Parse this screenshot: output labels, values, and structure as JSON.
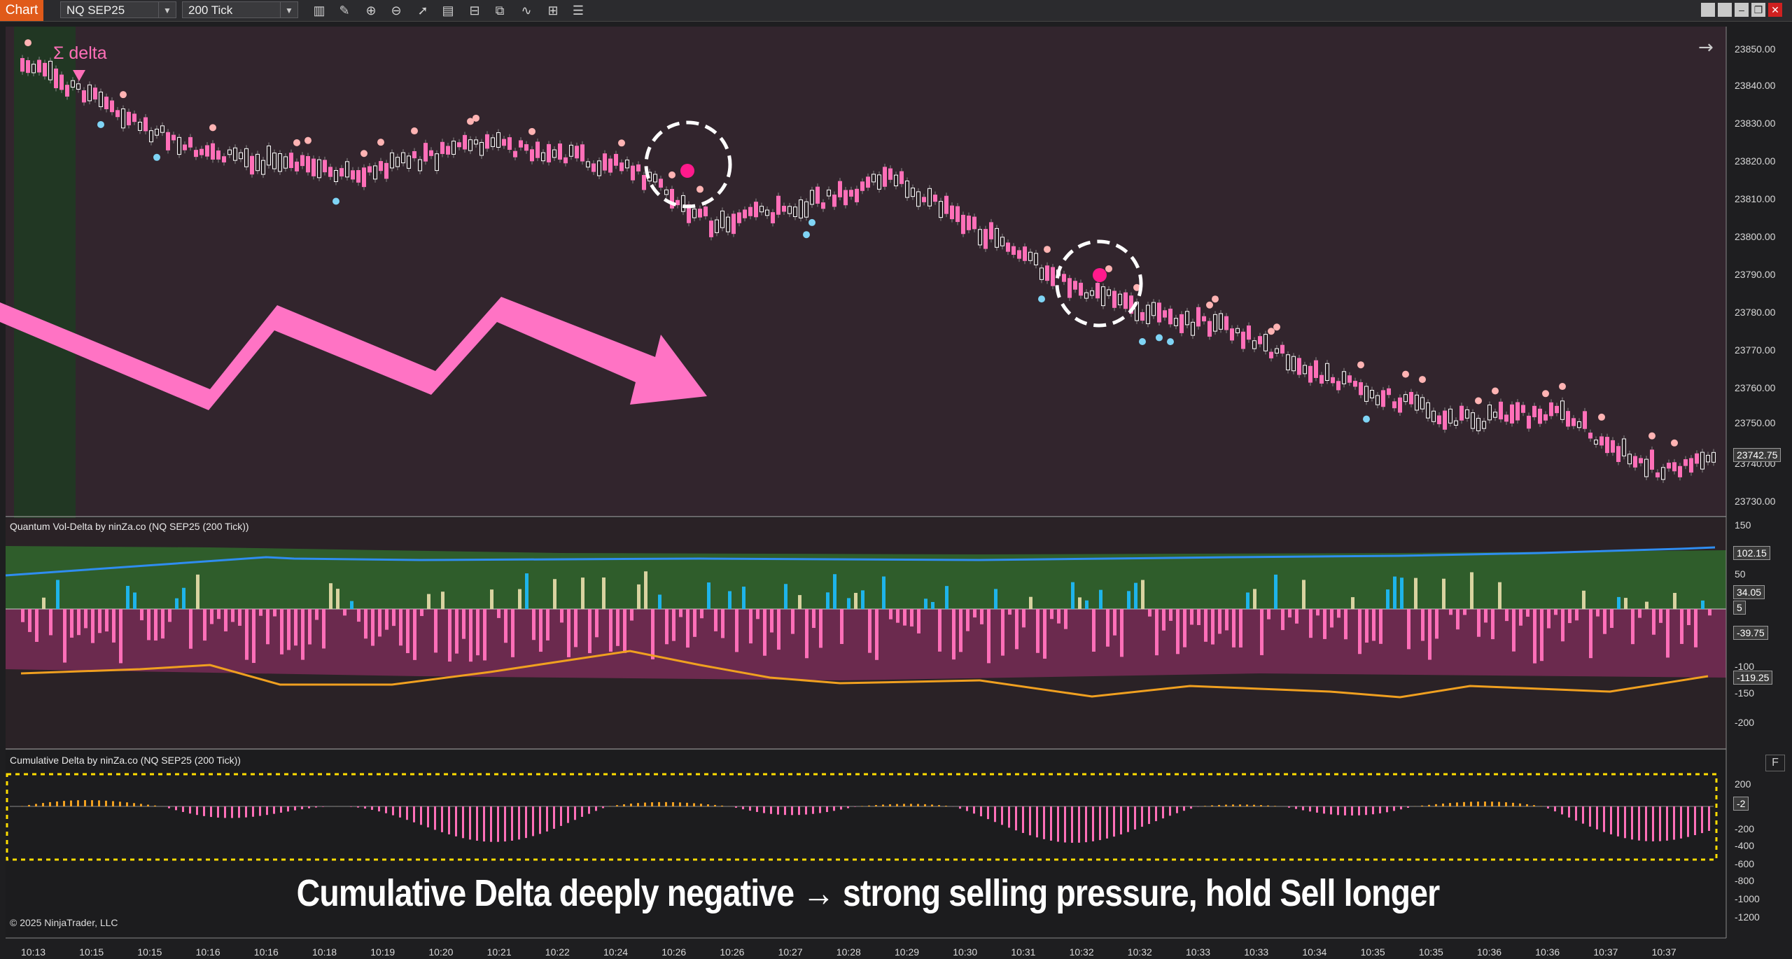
{
  "toolbar": {
    "tab_label": "Chart",
    "instrument": "NQ SEP25",
    "interval": "200 Tick",
    "icons": [
      "bar-type-icon",
      "draw-pencil-icon",
      "zoom-in-icon",
      "zoom-out-icon",
      "pointer-icon",
      "data-box-icon",
      "templates-icon",
      "strategies-icon",
      "indicators-icon",
      "properties-icon",
      "list-icon"
    ],
    "window_buttons": [
      "tile-a",
      "tile-b",
      "minimize",
      "restore",
      "close"
    ]
  },
  "price_panel": {
    "indicator_label": "Σ delta",
    "axis_ticks": [
      "23850.00",
      "23840.00",
      "23830.00",
      "23820.00",
      "23810.00",
      "23800.00",
      "23790.00",
      "23780.00",
      "23770.00",
      "23760.00",
      "23750.00",
      "23740.00",
      "23730.00"
    ],
    "current_price": "23742.75",
    "colors": {
      "background": "#32252d",
      "bull": "#ffffff",
      "bear": "#ff6fb8",
      "dot_red": "#ffb3b3",
      "dot_blue": "#7fd4f5",
      "signal": "#ff2d8a"
    }
  },
  "vol_delta_panel": {
    "title": "Quantum Vol-Delta by ninZa.co (NQ SEP25 (200 Tick))",
    "axis_ticks": [
      "150",
      "50",
      "-100",
      "-150",
      "-200"
    ],
    "flags": [
      "102.15",
      "34.05",
      "5",
      "-39.75",
      "-119.25"
    ]
  },
  "cum_delta_panel": {
    "title": "Cumulative Delta by ninZa.co (NQ SEP25 (200 Tick))",
    "axis_ticks": [
      "200",
      "-200",
      "-400",
      "-600",
      "-800",
      "-1000",
      "-1200"
    ],
    "flag": "-2",
    "f_button": "F"
  },
  "time_axis": [
    "10:13",
    "10:15",
    "10:15",
    "10:16",
    "10:16",
    "10:18",
    "10:19",
    "10:20",
    "10:21",
    "10:22",
    "10:24",
    "10:26",
    "10:26",
    "10:27",
    "10:28",
    "10:29",
    "10:30",
    "10:31",
    "10:32",
    "10:32",
    "10:33",
    "10:33",
    "10:34",
    "10:35",
    "10:35",
    "10:36",
    "10:36",
    "10:37",
    "10:37"
  ],
  "caption": "Cumulative Delta deeply negative → strong selling pressure, hold Sell longer",
  "copyright": "© 2025 NinjaTrader, LLC"
}
